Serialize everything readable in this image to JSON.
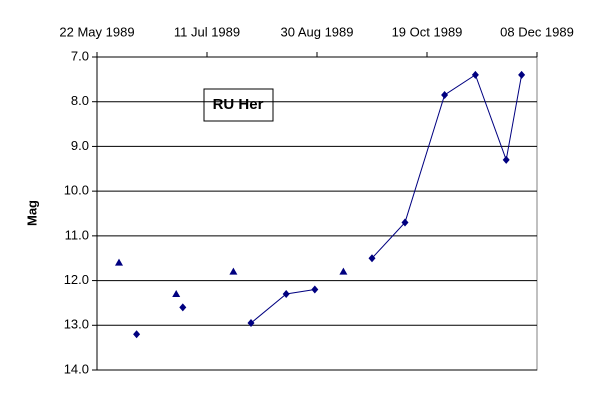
{
  "chart_data": {
    "type": "scatter",
    "annotation": "RU Her",
    "y_label": "Mag",
    "x_axis_position": "top",
    "y_reversed": true,
    "grid": true,
    "xlim": [
      "1989-05-22",
      "1989-12-08"
    ],
    "xticks": [
      {
        "value": "1989-05-22",
        "label": "22 May 1989"
      },
      {
        "value": "1989-07-11",
        "label": "11 Jul 1989"
      },
      {
        "value": "1989-08-30",
        "label": "30 Aug 1989"
      },
      {
        "value": "1989-10-19",
        "label": "19 Oct 1989"
      },
      {
        "value": "1989-12-08",
        "label": "08 Dec 1989"
      }
    ],
    "ylim": [
      7,
      14
    ],
    "yticks": [
      {
        "value": 7,
        "label": "7.0"
      },
      {
        "value": 8,
        "label": "8.0"
      },
      {
        "value": 9,
        "label": "9.0"
      },
      {
        "value": 10,
        "label": "10.0"
      },
      {
        "value": 11,
        "label": "11.0"
      },
      {
        "value": 12,
        "label": "12.0"
      },
      {
        "value": 13,
        "label": "13.0"
      },
      {
        "value": 14,
        "label": "14.0"
      }
    ],
    "series": [
      {
        "marker": "triangle",
        "line": false,
        "color": "#000080",
        "x": [
          "1989-06-01",
          "1989-06-27",
          "1989-07-23",
          "1989-09-11"
        ],
        "values": [
          11.6,
          12.3,
          11.8,
          11.8
        ]
      },
      {
        "marker": "diamond",
        "line": true,
        "color": "#000080",
        "x": [
          "1989-06-09",
          null,
          "1989-06-30",
          null,
          "1989-07-31",
          "1989-08-16",
          "1989-08-29",
          null,
          "1989-09-24",
          "1989-10-09",
          "1989-10-27",
          "1989-11-10",
          "1989-11-24",
          "1989-12-01"
        ],
        "values": [
          13.2,
          null,
          12.6,
          null,
          12.95,
          12.3,
          12.2,
          null,
          11.5,
          10.7,
          7.85,
          7.4,
          9.3,
          7.4
        ]
      }
    ]
  }
}
